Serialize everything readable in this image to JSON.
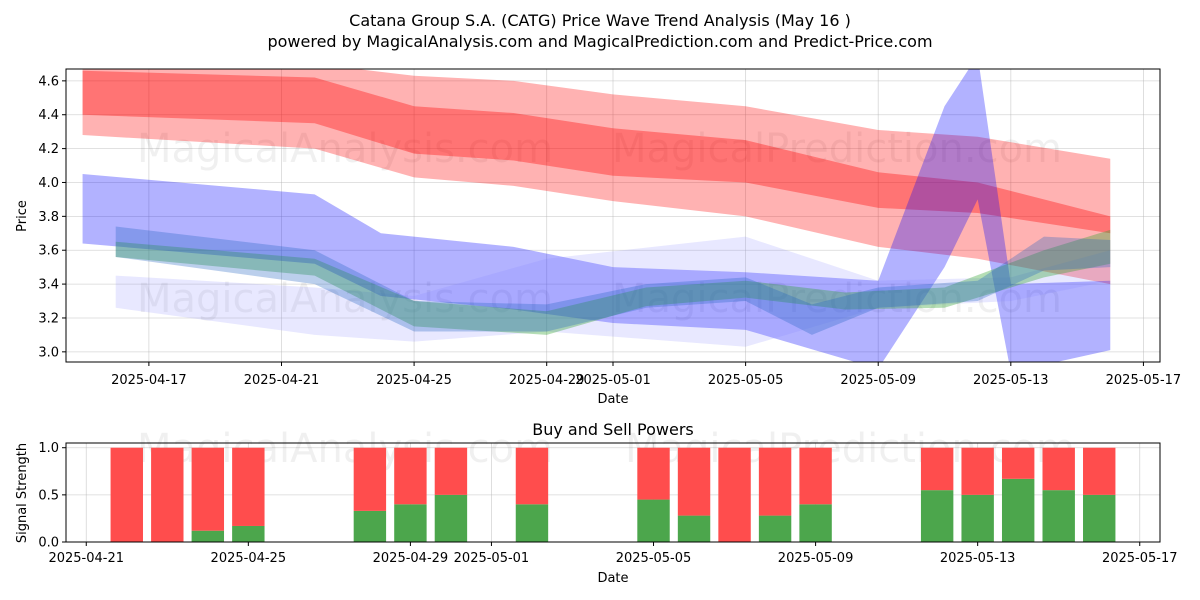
{
  "chart_data": [
    {
      "type": "area",
      "title": "Catana Group S.A. (CATG) Price Wave Trend Analysis (May 16 )",
      "subtitle": "powered by MagicalAnalysis.com and MagicalPrediction.com and Predict-Price.com",
      "xlabel": "Date",
      "ylabel": "Price",
      "xlim": [
        "2025-04-14.5",
        "2025-05-17.5"
      ],
      "ylim": [
        2.94,
        4.67
      ],
      "xticks": [
        "2025-04-17",
        "2025-04-21",
        "2025-04-25",
        "2025-04-29",
        "2025-05-01",
        "2025-05-05",
        "2025-05-09",
        "2025-05-13",
        "2025-05-17"
      ],
      "yticks": [
        3.0,
        3.2,
        3.4,
        3.6,
        3.8,
        4.0,
        4.2,
        4.4,
        4.6
      ],
      "watermarks": [
        "MagicalAnalysis.com",
        "MagicalPrediction.com"
      ],
      "series": [
        {
          "name": "red-outer-band",
          "color": "#ff0000",
          "opacity": 0.3,
          "x": [
            "2025-04-15",
            "2025-04-22",
            "2025-04-25",
            "2025-04-28",
            "2025-05-01",
            "2025-05-05",
            "2025-05-09",
            "2025-05-12",
            "2025-05-16"
          ],
          "upper": [
            4.72,
            4.7,
            4.63,
            4.6,
            4.52,
            4.45,
            4.31,
            4.27,
            4.14
          ],
          "lower": [
            4.28,
            4.2,
            4.03,
            3.98,
            3.89,
            3.8,
            3.62,
            3.55,
            3.4
          ]
        },
        {
          "name": "red-inner-band",
          "color": "#ff0000",
          "opacity": 0.35,
          "x": [
            "2025-04-15",
            "2025-04-22",
            "2025-04-25",
            "2025-04-28",
            "2025-05-01",
            "2025-05-05",
            "2025-05-09",
            "2025-05-12",
            "2025-05-16"
          ],
          "upper": [
            4.66,
            4.62,
            4.45,
            4.41,
            4.32,
            4.25,
            4.06,
            4.0,
            3.8
          ],
          "lower": [
            4.4,
            4.35,
            4.17,
            4.13,
            4.04,
            4.0,
            3.85,
            3.82,
            3.7
          ]
        },
        {
          "name": "blue-outer-band",
          "color": "#0000ff",
          "opacity": 0.3,
          "x": [
            "2025-04-15",
            "2025-04-22",
            "2025-04-24",
            "2025-04-28",
            "2025-05-01",
            "2025-05-05",
            "2025-05-09",
            "2025-05-11",
            "2025-05-12",
            "2025-05-13",
            "2025-05-16"
          ],
          "upper": [
            4.05,
            3.93,
            3.7,
            3.62,
            3.5,
            3.47,
            3.42,
            4.45,
            4.75,
            3.4,
            3.42
          ],
          "lower": [
            3.64,
            3.52,
            3.33,
            3.25,
            3.17,
            3.13,
            2.9,
            3.5,
            3.9,
            2.88,
            3.01
          ]
        },
        {
          "name": "lavender-band",
          "color": "#8080ff",
          "opacity": 0.18,
          "x": [
            "2025-04-16",
            "2025-04-22",
            "2025-04-25",
            "2025-04-29",
            "2025-05-05",
            "2025-05-09",
            "2025-05-13",
            "2025-05-16"
          ],
          "upper": [
            3.45,
            3.38,
            3.33,
            3.55,
            3.68,
            3.42,
            3.44,
            3.6
          ],
          "lower": [
            3.26,
            3.1,
            3.06,
            3.12,
            3.03,
            3.26,
            3.3,
            3.42
          ]
        },
        {
          "name": "green-band",
          "color": "#2ca02c",
          "opacity": 0.35,
          "x": [
            "2025-04-16",
            "2025-04-22",
            "2025-04-25",
            "2025-04-29",
            "2025-05-02",
            "2025-05-05",
            "2025-05-08",
            "2025-05-11",
            "2025-05-14",
            "2025-05-16"
          ],
          "upper": [
            3.65,
            3.55,
            3.3,
            3.24,
            3.38,
            3.42,
            3.35,
            3.38,
            3.6,
            3.72
          ],
          "lower": [
            3.56,
            3.45,
            3.15,
            3.1,
            3.27,
            3.32,
            3.25,
            3.26,
            3.44,
            3.52
          ]
        },
        {
          "name": "steelblue-band",
          "color": "#1f5fbf",
          "opacity": 0.3,
          "x": [
            "2025-04-16",
            "2025-04-22",
            "2025-04-25",
            "2025-04-29",
            "2025-05-02",
            "2025-05-05",
            "2025-05-07",
            "2025-05-09",
            "2025-05-12",
            "2025-05-14",
            "2025-05-16"
          ],
          "upper": [
            3.74,
            3.6,
            3.3,
            3.28,
            3.4,
            3.44,
            3.28,
            3.38,
            3.42,
            3.68,
            3.66
          ],
          "lower": [
            3.56,
            3.4,
            3.12,
            3.12,
            3.26,
            3.3,
            3.1,
            3.26,
            3.3,
            3.48,
            3.5
          ]
        }
      ]
    },
    {
      "type": "bar",
      "title": "Buy and Sell Powers",
      "xlabel": "Date",
      "ylabel": "Signal Strength",
      "xlim": [
        "2025-04-20.5",
        "2025-05-17.5"
      ],
      "ylim": [
        0,
        1.05
      ],
      "xticks": [
        "2025-04-21",
        "2025-04-25",
        "2025-04-29",
        "2025-05-01",
        "2025-05-05",
        "2025-05-09",
        "2025-05-13",
        "2025-05-17"
      ],
      "yticks": [
        0.0,
        0.5,
        1.0
      ],
      "watermarks": [
        "MagicalAnalysis.com",
        "MagicalPrediction.com"
      ],
      "buy_color": "#4ca64c",
      "sell_color": "#ff4d4d",
      "categories": [
        "2025-04-22",
        "2025-04-23",
        "2025-04-24",
        "2025-04-25",
        "2025-04-28",
        "2025-04-29",
        "2025-04-30",
        "2025-05-02",
        "2025-05-05",
        "2025-05-06",
        "2025-05-07",
        "2025-05-08",
        "2025-05-09",
        "2025-05-12",
        "2025-05-13",
        "2025-05-14",
        "2025-05-15",
        "2025-05-16"
      ],
      "series": [
        {
          "name": "Buy",
          "values": [
            0.0,
            0.0,
            0.12,
            0.17,
            0.33,
            0.4,
            0.5,
            0.4,
            0.45,
            0.28,
            0.0,
            0.28,
            0.4,
            0.55,
            0.5,
            0.67,
            0.55,
            0.5
          ]
        },
        {
          "name": "Sell",
          "values": [
            1.0,
            1.0,
            0.88,
            0.83,
            0.67,
            0.6,
            0.5,
            0.6,
            0.55,
            0.72,
            1.0,
            0.72,
            0.6,
            0.45,
            0.5,
            0.33,
            0.45,
            0.5
          ]
        }
      ]
    }
  ]
}
